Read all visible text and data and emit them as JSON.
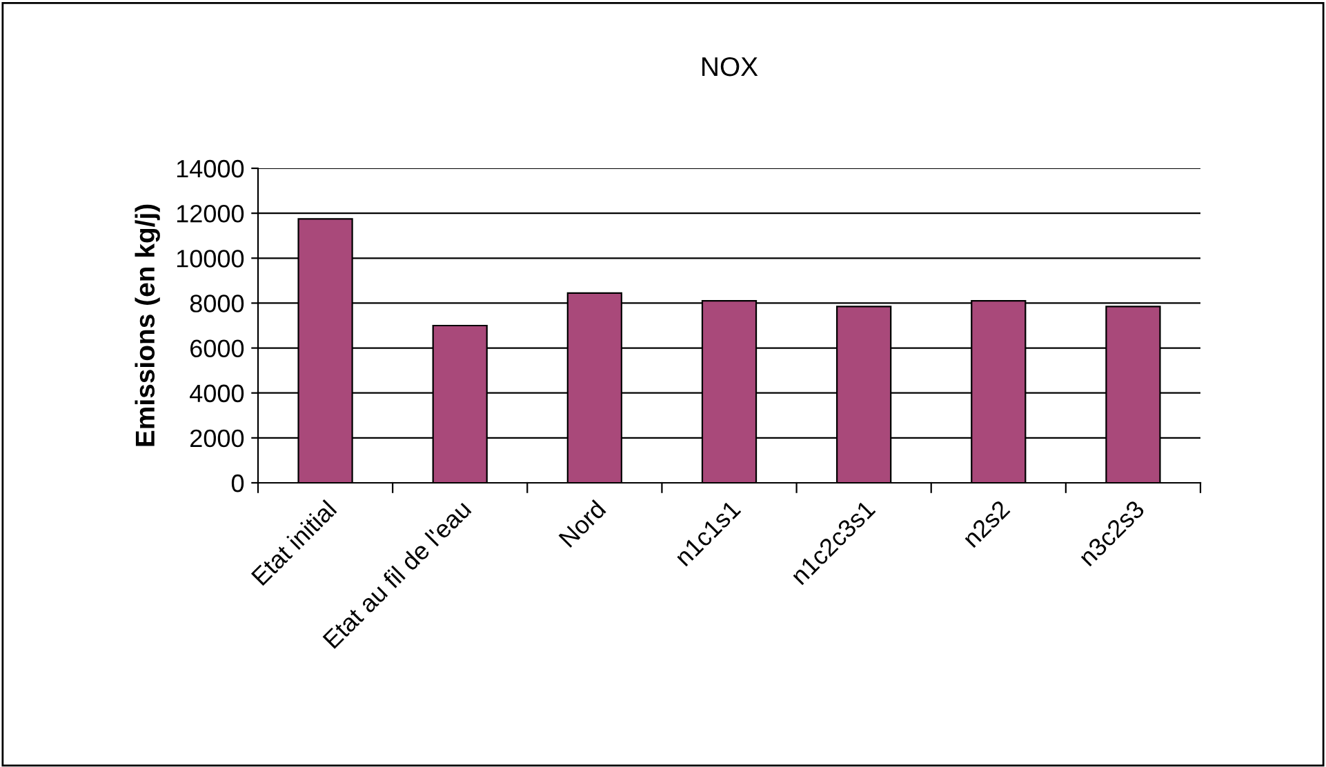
{
  "chart_data": {
    "type": "bar",
    "title": "NOX",
    "ylabel": "Emissions (en kg/j)",
    "categories": [
      "Etat initial",
      "Etat au fil de l'eau",
      "Nord",
      "n1c1s1",
      "n1c2c3s1",
      "n2s2",
      "n3c2s3"
    ],
    "values": [
      11750,
      7000,
      8450,
      8100,
      7850,
      8100,
      7850
    ],
    "color": "#a9497a",
    "ylim": [
      0,
      14000
    ],
    "yticks": [
      0,
      2000,
      4000,
      6000,
      8000,
      10000,
      12000,
      14000
    ],
    "grid": "y"
  }
}
